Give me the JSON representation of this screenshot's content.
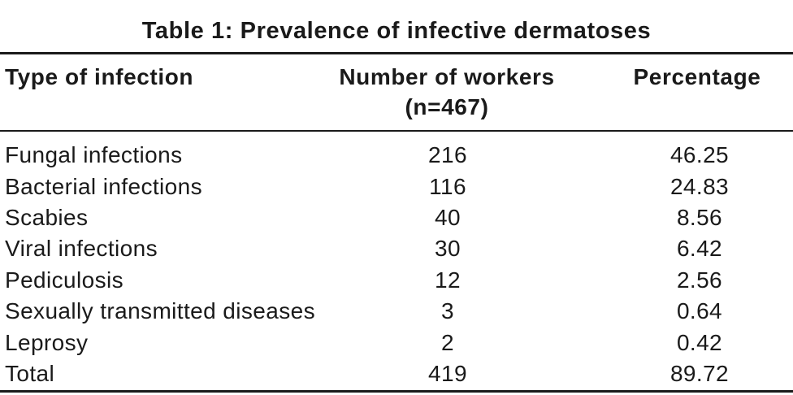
{
  "table": {
    "title": "Table 1: Prevalence of infective dermatoses",
    "headers": {
      "type": "Type of infection",
      "number_line1": "Number of workers",
      "number_line2": "(n=467)",
      "percentage": "Percentage"
    },
    "rows": [
      {
        "type": "Fungal infections",
        "number": "216",
        "percentage": "46.25"
      },
      {
        "type": "Bacterial infections",
        "number": "116",
        "percentage": "24.83"
      },
      {
        "type": "Scabies",
        "number": "40",
        "percentage": "8.56"
      },
      {
        "type": "Viral infections",
        "number": "30",
        "percentage": "6.42"
      },
      {
        "type": "Pediculosis",
        "number": "12",
        "percentage": "2.56"
      },
      {
        "type": "Sexually transmitted diseases",
        "number": "3",
        "percentage": "0.64"
      },
      {
        "type": "Leprosy",
        "number": "2",
        "percentage": "0.42"
      },
      {
        "type": "Total",
        "number": "419",
        "percentage": "89.72"
      }
    ]
  }
}
